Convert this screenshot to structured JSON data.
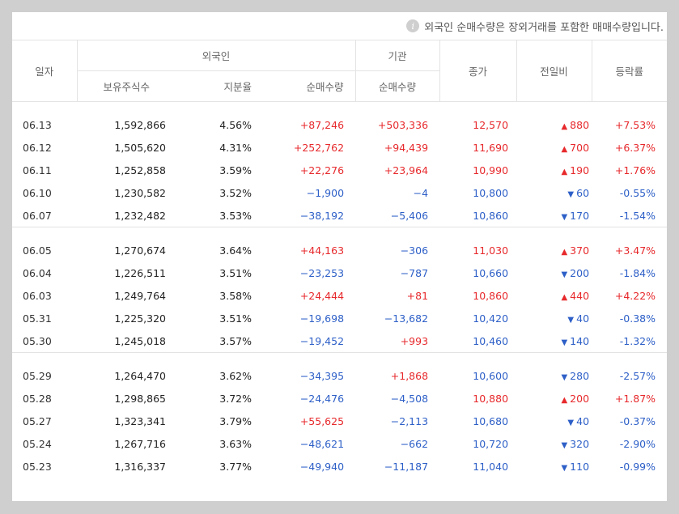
{
  "notice": {
    "icon": "info-icon",
    "text": "외국인 순매수량은 장외거래를 포함한 매매수량입니다."
  },
  "headers": {
    "date": "일자",
    "foreign": "외국인",
    "institution": "기관",
    "close": "종가",
    "change": "전일비",
    "rate": "등락률",
    "holdings": "보유주식수",
    "share": "지분율",
    "foreign_net": "순매수량",
    "inst_net": "순매수량"
  },
  "colors": {
    "up": "#e7292c",
    "down": "#2d5fc7"
  },
  "groups": [
    [
      {
        "date": "06.13",
        "holdings": "1,592,866",
        "share": "4.56%",
        "foreign_net": "+87,246",
        "inst_net": "+503,336",
        "close": "12,570",
        "dir": "up",
        "change": "880",
        "rate": "+7.53%"
      },
      {
        "date": "06.12",
        "holdings": "1,505,620",
        "share": "4.31%",
        "foreign_net": "+252,762",
        "inst_net": "+94,439",
        "close": "11,690",
        "dir": "up",
        "change": "700",
        "rate": "+6.37%"
      },
      {
        "date": "06.11",
        "holdings": "1,252,858",
        "share": "3.59%",
        "foreign_net": "+22,276",
        "inst_net": "+23,964",
        "close": "10,990",
        "dir": "up",
        "change": "190",
        "rate": "+1.76%"
      },
      {
        "date": "06.10",
        "holdings": "1,230,582",
        "share": "3.52%",
        "foreign_net": "−1,900",
        "inst_net": "−4",
        "close": "10,800",
        "dir": "down",
        "change": "60",
        "rate": "-0.55%"
      },
      {
        "date": "06.07",
        "holdings": "1,232,482",
        "share": "3.53%",
        "foreign_net": "−38,192",
        "inst_net": "−5,406",
        "close": "10,860",
        "dir": "down",
        "change": "170",
        "rate": "-1.54%"
      }
    ],
    [
      {
        "date": "06.05",
        "holdings": "1,270,674",
        "share": "3.64%",
        "foreign_net": "+44,163",
        "inst_net": "−306",
        "close": "11,030",
        "dir": "up",
        "change": "370",
        "rate": "+3.47%"
      },
      {
        "date": "06.04",
        "holdings": "1,226,511",
        "share": "3.51%",
        "foreign_net": "−23,253",
        "inst_net": "−787",
        "close": "10,660",
        "dir": "down",
        "change": "200",
        "rate": "-1.84%"
      },
      {
        "date": "06.03",
        "holdings": "1,249,764",
        "share": "3.58%",
        "foreign_net": "+24,444",
        "inst_net": "+81",
        "close": "10,860",
        "dir": "up",
        "change": "440",
        "rate": "+4.22%"
      },
      {
        "date": "05.31",
        "holdings": "1,225,320",
        "share": "3.51%",
        "foreign_net": "−19,698",
        "inst_net": "−13,682",
        "close": "10,420",
        "dir": "down",
        "change": "40",
        "rate": "-0.38%"
      },
      {
        "date": "05.30",
        "holdings": "1,245,018",
        "share": "3.57%",
        "foreign_net": "−19,452",
        "inst_net": "+993",
        "close": "10,460",
        "dir": "down",
        "change": "140",
        "rate": "-1.32%"
      }
    ],
    [
      {
        "date": "05.29",
        "holdings": "1,264,470",
        "share": "3.62%",
        "foreign_net": "−34,395",
        "inst_net": "+1,868",
        "close": "10,600",
        "dir": "down",
        "change": "280",
        "rate": "-2.57%"
      },
      {
        "date": "05.28",
        "holdings": "1,298,865",
        "share": "3.72%",
        "foreign_net": "−24,476",
        "inst_net": "−4,508",
        "close": "10,880",
        "dir": "up",
        "change": "200",
        "rate": "+1.87%"
      },
      {
        "date": "05.27",
        "holdings": "1,323,341",
        "share": "3.79%",
        "foreign_net": "+55,625",
        "inst_net": "−2,113",
        "close": "10,680",
        "dir": "down",
        "change": "40",
        "rate": "-0.37%"
      },
      {
        "date": "05.24",
        "holdings": "1,267,716",
        "share": "3.63%",
        "foreign_net": "−48,621",
        "inst_net": "−662",
        "close": "10,720",
        "dir": "down",
        "change": "320",
        "rate": "-2.90%"
      },
      {
        "date": "05.23",
        "holdings": "1,316,337",
        "share": "3.77%",
        "foreign_net": "−49,940",
        "inst_net": "−11,187",
        "close": "11,040",
        "dir": "down",
        "change": "110",
        "rate": "-0.99%"
      }
    ]
  ]
}
